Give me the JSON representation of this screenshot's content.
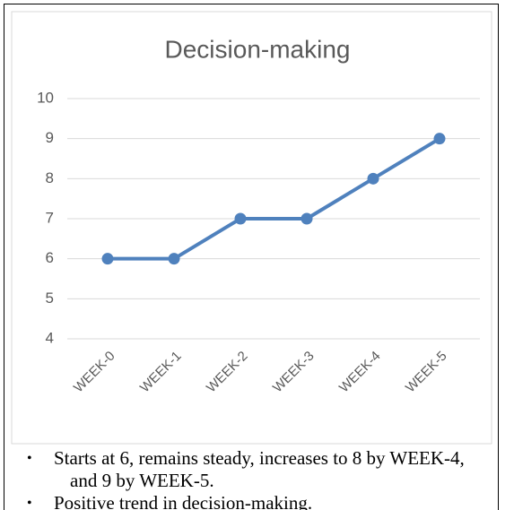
{
  "chart_data": {
    "type": "line",
    "title": "Decision-making",
    "categories": [
      "WEEK-0",
      "WEEK-1",
      "WEEK-2",
      "WEEK-3",
      "WEEK-4",
      "WEEK-5"
    ],
    "series": [
      {
        "name": "Decision-making",
        "color": "#4f81bd",
        "values": [
          6,
          6,
          7,
          7,
          8,
          9
        ]
      }
    ],
    "ylim": [
      4,
      10
    ],
    "yticks": [
      4,
      5,
      6,
      7,
      8,
      9,
      10
    ],
    "grid": true
  },
  "notes": [
    "Starts at 6, remains steady, increases to 8 by WEEK-4, and 9 by WEEK-5.",
    "Positive trend in decision-making."
  ]
}
